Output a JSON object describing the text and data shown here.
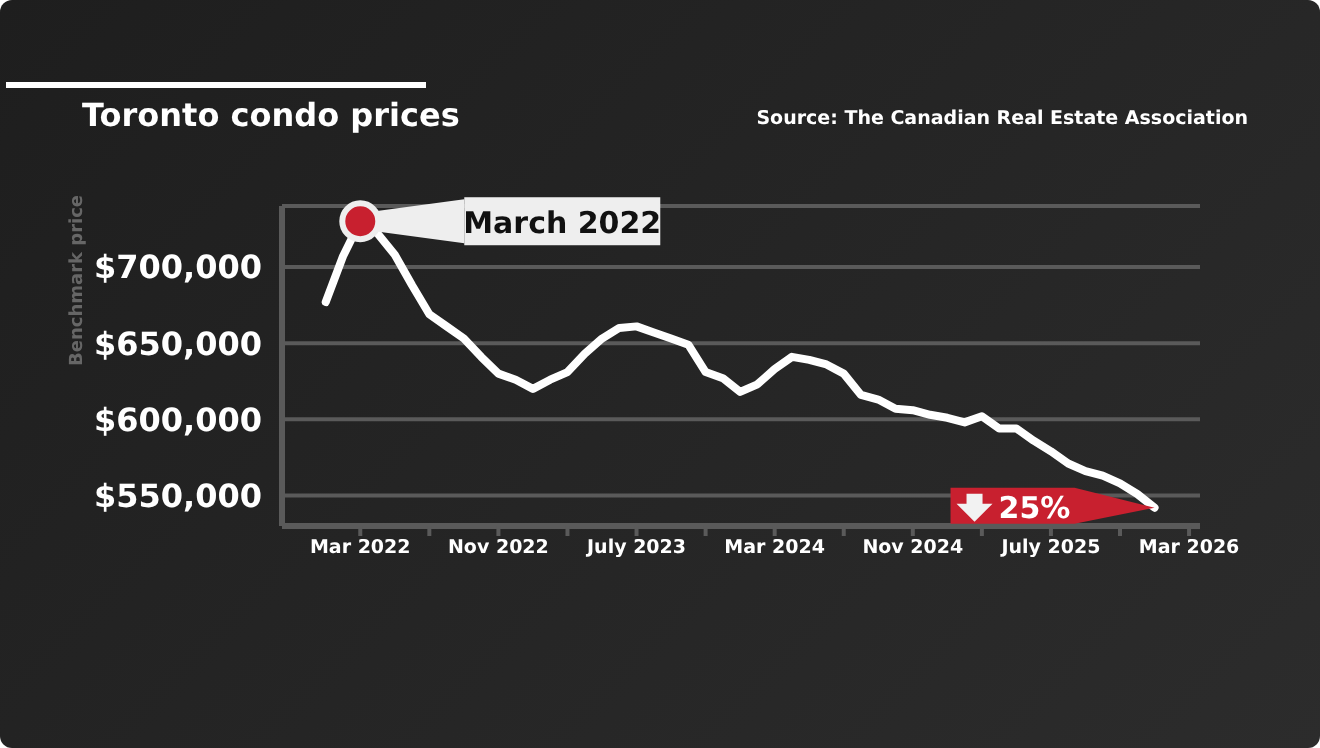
{
  "chart_data": {
    "type": "line",
    "title": "Toronto condo prices",
    "ylabel": "Benchmark price",
    "annotations": [
      "Source: The Canadian Real Estate Association",
      {
        "text": "March 2022",
        "x": "2022-03",
        "y": 730000
      },
      {
        "text": "25%",
        "x": "2026-01",
        "y": 542000
      }
    ],
    "x": [
      "2022-01",
      "2022-02",
      "2022-03",
      "2022-04",
      "2022-05",
      "2022-06",
      "2022-07",
      "2022-08",
      "2022-09",
      "2022-10",
      "2022-11",
      "2022-12",
      "2023-01",
      "2023-02",
      "2023-03",
      "2023-04",
      "2023-05",
      "2023-06",
      "2023-07",
      "2023-08",
      "2023-09",
      "2023-10",
      "2023-11",
      "2023-12",
      "2024-01",
      "2024-02",
      "2024-03",
      "2024-04",
      "2024-05",
      "2024-06",
      "2024-07",
      "2024-08",
      "2024-09",
      "2024-10",
      "2024-11",
      "2024-12",
      "2025-01",
      "2025-02",
      "2025-03",
      "2025-04",
      "2025-05",
      "2025-06",
      "2025-07",
      "2025-08",
      "2025-09",
      "2025-10",
      "2025-11",
      "2025-12",
      "2026-01"
    ],
    "series": [
      {
        "color": "#ffffff",
        "values": [
          677000,
          707000,
          730000,
          722000,
          708000,
          688000,
          669000,
          661000,
          653000,
          641000,
          630000,
          626000,
          620000,
          626000,
          631000,
          643000,
          653000,
          660000,
          661000,
          657000,
          653000,
          649000,
          631000,
          627000,
          618000,
          623000,
          633000,
          641000,
          639000,
          636000,
          630000,
          616000,
          613000,
          607000,
          606000,
          603000,
          601000,
          598000,
          602000,
          594000,
          594000,
          586000,
          579000,
          571000,
          566000,
          563000,
          558000,
          551000,
          542000
        ]
      }
    ],
    "xlim": [
      "2021-10-15",
      "2026-03-20"
    ],
    "xticks": [
      {
        "value": "2022-03",
        "label": "Mar 2022"
      },
      {
        "value": "2022-07",
        "label": null
      },
      {
        "value": "2022-11",
        "label": "Nov 2022"
      },
      {
        "value": "2023-03",
        "label": null
      },
      {
        "value": "2023-07",
        "label": "July 2023"
      },
      {
        "value": "2023-11",
        "label": null
      },
      {
        "value": "2024-03",
        "label": "Mar 2024"
      },
      {
        "value": "2024-07",
        "label": null
      },
      {
        "value": "2024-11",
        "label": "Nov 2024"
      },
      {
        "value": "2025-03",
        "label": null
      },
      {
        "value": "2025-07",
        "label": "July 2025"
      },
      {
        "value": "2025-11",
        "label": null
      },
      {
        "value": "2026-03",
        "label": "Mar 2026"
      }
    ],
    "ylim": [
      530000,
      740000
    ],
    "yticks": [
      {
        "value": 550000,
        "label": "$550,000"
      },
      {
        "value": 600000,
        "label": "$600,000"
      },
      {
        "value": 650000,
        "label": "$650,000"
      },
      {
        "value": 700000,
        "label": "$700,000"
      }
    ],
    "grid": "y",
    "legend": false,
    "marker": "none",
    "line_style": "solid"
  }
}
